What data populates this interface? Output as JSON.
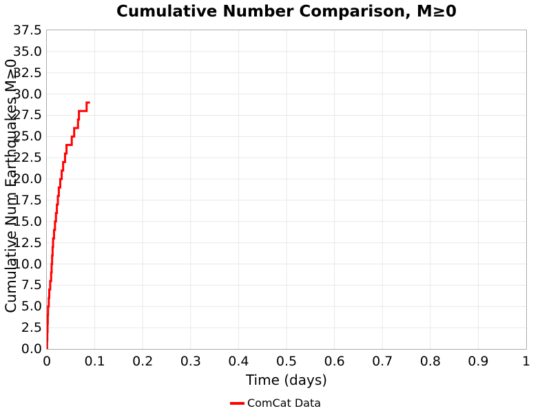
{
  "title": "Cumulative Number Comparison, M≥0",
  "axes": {
    "xlabel": "Time (days)",
    "ylabel": "Cumulative Num Earthquakes M≥0",
    "x_ticks": [
      "0",
      "0.1",
      "0.2",
      "0.3",
      "0.4",
      "0.5",
      "0.6",
      "0.7",
      "0.8",
      "0.9",
      "1"
    ],
    "y_ticks": [
      "0.0",
      "2.5",
      "5.0",
      "7.5",
      "10.0",
      "12.5",
      "15.0",
      "17.5",
      "20.0",
      "22.5",
      "25.0",
      "27.5",
      "30.0",
      "32.5",
      "35.0",
      "37.5"
    ]
  },
  "legend": {
    "items": [
      {
        "label": "ComCat Data",
        "color": "#ff0000"
      }
    ]
  },
  "colors": {
    "line": "#ff0000",
    "grid": "#e8e8e8",
    "spine": "#aaaaaa",
    "text": "#000000",
    "background": "#ffffff"
  },
  "chart_data": {
    "type": "line",
    "subtype": "cumulative-step",
    "title": "Cumulative Number Comparison, M≥0",
    "xlabel": "Time (days)",
    "ylabel": "Cumulative Num Earthquakes M≥0",
    "xlim": [
      0,
      1
    ],
    "ylim": [
      0,
      37.5
    ],
    "grid": true,
    "legend_position": "bottom-center",
    "series": [
      {
        "name": "ComCat Data",
        "color": "#ff0000",
        "line_width": 3,
        "start": [
          0,
          0
        ],
        "event_times_days": [
          0.0005,
          0.001,
          0.0015,
          0.002,
          0.0025,
          0.004,
          0.005,
          0.007,
          0.009,
          0.01,
          0.011,
          0.012,
          0.013,
          0.015,
          0.017,
          0.019,
          0.021,
          0.023,
          0.025,
          0.028,
          0.031,
          0.034,
          0.038,
          0.041,
          0.052,
          0.057,
          0.065,
          0.067,
          0.083
        ],
        "cumulative_counts": [
          1,
          2,
          3,
          4,
          5,
          6,
          7,
          8,
          9,
          10,
          11,
          12,
          13,
          14,
          15,
          16,
          17,
          18,
          19,
          20,
          21,
          22,
          23,
          24,
          25,
          26,
          27,
          28,
          29
        ],
        "end": [
          0.09,
          29
        ]
      }
    ]
  }
}
